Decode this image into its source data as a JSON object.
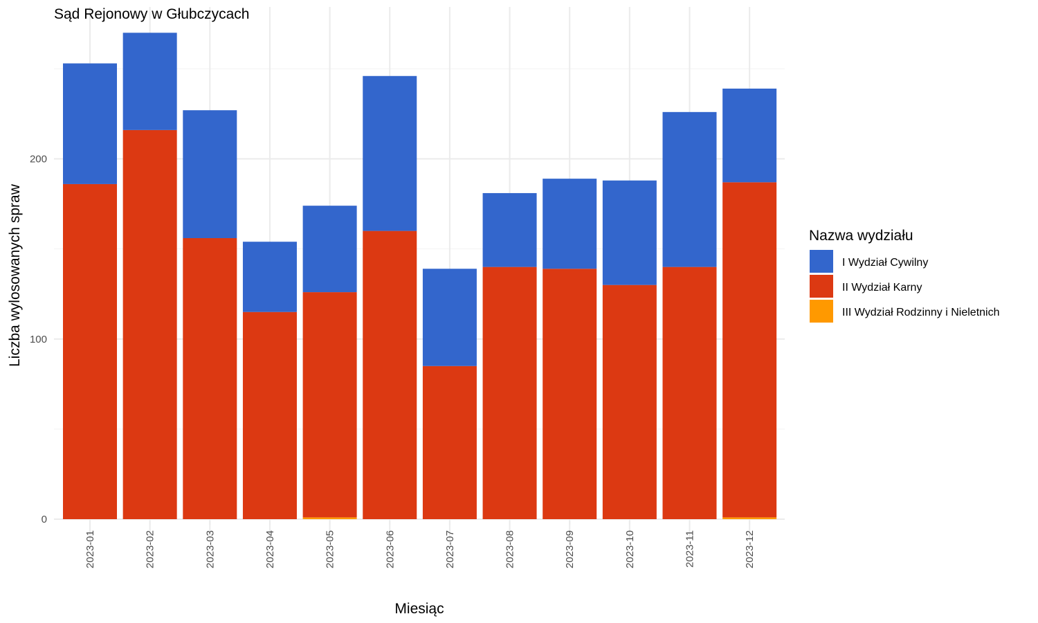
{
  "chart_data": {
    "type": "bar",
    "stacked": true,
    "title": "Sąd Rejonowy w Głubczycach",
    "xlabel": "Miesiąc",
    "ylabel": "Liczba wylosowanych spraw",
    "ylim": [
      0,
      282
    ],
    "yticks": [
      0,
      100,
      200
    ],
    "grid": true,
    "legend_title": "Nazwa wydziału",
    "legend_position": "right",
    "categories": [
      "2023-01",
      "2023-02",
      "2023-03",
      "2023-04",
      "2023-05",
      "2023-06",
      "2023-07",
      "2023-08",
      "2023-09",
      "2023-10",
      "2023-11",
      "2023-12"
    ],
    "series": [
      {
        "name": "III Wydział Rodzinny i Nieletnich",
        "color": "#FF9900",
        "values": [
          0,
          0,
          0,
          0,
          1,
          0,
          0,
          0,
          0,
          0,
          0,
          1
        ]
      },
      {
        "name": "II Wydział Karny",
        "color": "#DC3912",
        "values": [
          186,
          216,
          156,
          115,
          125,
          160,
          85,
          140,
          139,
          130,
          140,
          186
        ]
      },
      {
        "name": "I Wydział Cywilny",
        "color": "#3366CC",
        "values": [
          67,
          54,
          71,
          39,
          48,
          86,
          54,
          41,
          50,
          58,
          86,
          52
        ]
      }
    ],
    "legend_order": [
      "I Wydział Cywilny",
      "II Wydział Karny",
      "III Wydział Rodzinny i Nieletnich"
    ]
  }
}
